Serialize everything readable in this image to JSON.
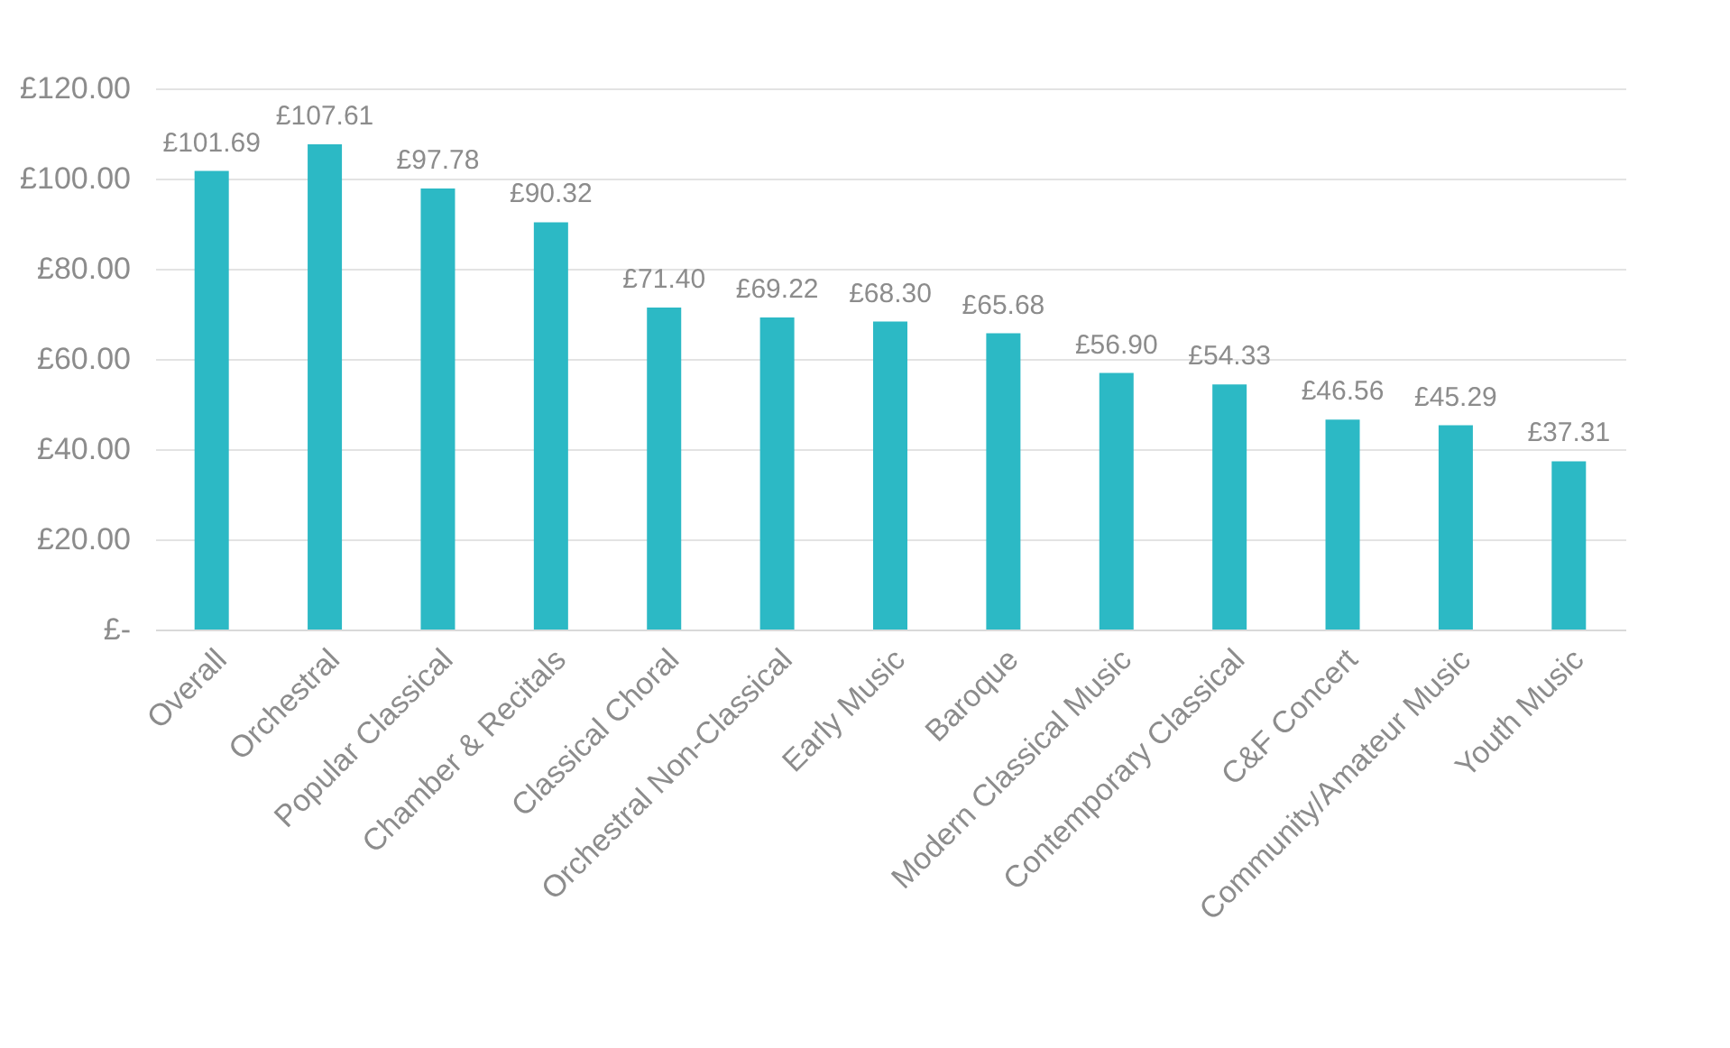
{
  "chart_data": {
    "type": "bar",
    "categories": [
      "Overall",
      "Orchestral",
      "Popular Classical",
      "Chamber & Recitals",
      "Classical Choral",
      "Orchestral Non-Classical",
      "Early Music",
      "Baroque",
      "Modern Classical Music",
      "Contemporary Classical",
      "C&F Concert",
      "Community/Amateur Music",
      "Youth Music"
    ],
    "values": [
      101.69,
      107.61,
      97.78,
      90.32,
      71.4,
      69.22,
      68.3,
      65.68,
      56.9,
      54.33,
      46.56,
      45.29,
      37.31
    ],
    "value_labels": [
      "£101.69",
      "£107.61",
      "£97.78",
      "£90.32",
      "£71.40",
      "£69.22",
      "£68.30",
      "£65.68",
      "£56.90",
      "£54.33",
      "£46.56",
      "£45.29",
      "£37.31"
    ],
    "color": "#2cb9c5",
    "ylim": [
      0,
      120
    ],
    "yticks": [
      {
        "value": 0,
        "label": "£-"
      },
      {
        "value": 20,
        "label": "£20.00"
      },
      {
        "value": 40,
        "label": "£40.00"
      },
      {
        "value": 60,
        "label": "£60.00"
      },
      {
        "value": 80,
        "label": "£80.00"
      },
      {
        "value": 100,
        "label": "£100.00"
      },
      {
        "value": 120,
        "label": "£120.00"
      }
    ],
    "grid": "y"
  }
}
